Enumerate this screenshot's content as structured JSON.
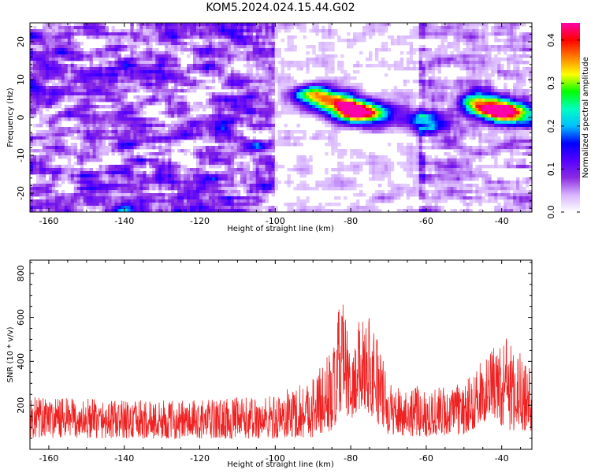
{
  "chart_data": [
    {
      "type": "heatmap",
      "title": "KOM5.2024.024.15.44.G02",
      "xlabel": "Height of straight line (km)",
      "ylabel": "Frequency (Hz)",
      "xlim": [
        -165,
        -32
      ],
      "ylim": [
        -25,
        25
      ],
      "x_ticks": [
        -160,
        -140,
        -120,
        -100,
        -80,
        -60,
        -40
      ],
      "y_ticks": [
        -20,
        -10,
        0,
        10,
        20
      ],
      "colorbar": {
        "label": "Normalized spectral amplitude",
        "range": [
          0,
          0.44
        ],
        "ticks": [
          0.0,
          0.1,
          0.2,
          0.3,
          0.4
        ],
        "colors": [
          "#ffffff",
          "#d8b4ff",
          "#8a2be2",
          "#5500ff",
          "#0000ff",
          "#00bfff",
          "#00ffc0",
          "#00ff00",
          "#ffff00",
          "#ff7f00",
          "#ff0000",
          "#ff00aa"
        ]
      },
      "hotspots": [
        {
          "x": -90,
          "y": 6,
          "value": 0.25
        },
        {
          "x": -84,
          "y": 4,
          "value": 0.28
        },
        {
          "x": -79,
          "y": 1.5,
          "value": 0.36
        },
        {
          "x": -74,
          "y": 1,
          "value": 0.2
        },
        {
          "x": -60,
          "y": -1,
          "value": 0.22
        },
        {
          "x": -46,
          "y": 4,
          "value": 0.25
        },
        {
          "x": -41,
          "y": 1.5,
          "value": 0.38
        },
        {
          "x": -35,
          "y": 1,
          "value": 0.24
        },
        {
          "x": -135,
          "y": 12,
          "value": 0.12
        },
        {
          "x": -120,
          "y": -24,
          "value": 0.12
        }
      ]
    },
    {
      "type": "line",
      "title": "",
      "xlabel": "Height of straight line (km)",
      "ylabel": "SNR (10 * v/v)",
      "xlim": [
        -165,
        -32
      ],
      "ylim": [
        0,
        860
      ],
      "x_ticks": [
        -160,
        -140,
        -120,
        -100,
        -80,
        -60,
        -40
      ],
      "y_ticks": [
        200,
        400,
        600,
        800
      ],
      "series": [
        {
          "color": "#ee2222",
          "envelope": [
            {
              "x": -165,
              "base": 130,
              "amp": 140
            },
            {
              "x": -140,
              "base": 120,
              "amp": 130
            },
            {
              "x": -120,
              "base": 120,
              "amp": 130
            },
            {
              "x": -100,
              "base": 130,
              "amp": 150
            },
            {
              "x": -90,
              "base": 170,
              "amp": 210
            },
            {
              "x": -84,
              "base": 250,
              "amp": 300
            },
            {
              "x": -82.5,
              "base": 420,
              "amp": 440
            },
            {
              "x": -80,
              "base": 240,
              "amp": 200
            },
            {
              "x": -77,
              "base": 380,
              "amp": 330
            },
            {
              "x": -74,
              "base": 330,
              "amp": 350
            },
            {
              "x": -70,
              "base": 160,
              "amp": 170
            },
            {
              "x": -60,
              "base": 150,
              "amp": 170
            },
            {
              "x": -50,
              "base": 160,
              "amp": 170
            },
            {
              "x": -43,
              "base": 270,
              "amp": 230
            },
            {
              "x": -38,
              "base": 260,
              "amp": 320
            },
            {
              "x": -32,
              "base": 200,
              "amp": 210
            }
          ]
        }
      ]
    }
  ]
}
